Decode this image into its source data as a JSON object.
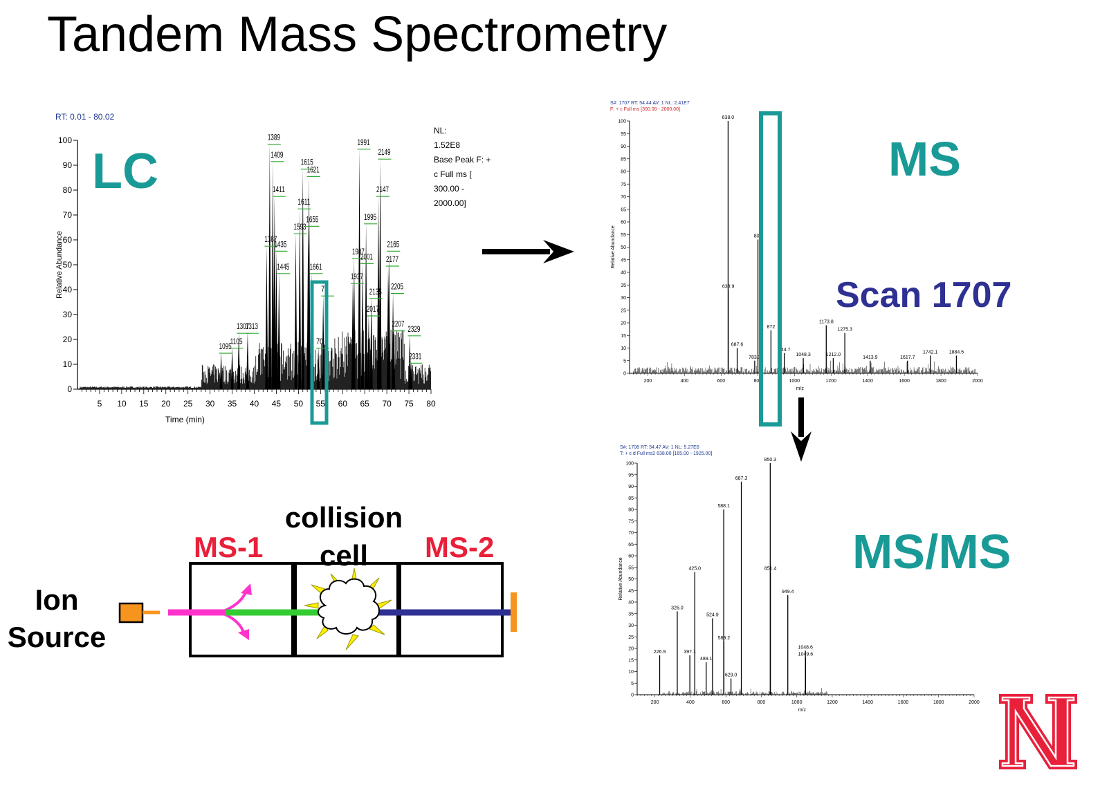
{
  "title": "Tandem Mass Spectrometry",
  "labels": {
    "lc": "LC",
    "ms": "MS",
    "scan": "Scan 1707",
    "msms": "MS/MS",
    "ms1": "MS-1",
    "ms2": "MS-2",
    "collision_line1": "collision",
    "collision_line2": "cell",
    "ion_line1": "Ion",
    "ion_line2": "Source"
  },
  "colors": {
    "teal": "#1a9a96",
    "navy": "#2e3192",
    "red": "#e8203a",
    "magenta": "#ff33cc",
    "green": "#33cc33",
    "orange": "#f7941d",
    "peak_label": "#33aa33"
  },
  "chart_data": [
    {
      "type": "line",
      "name": "lc-chromatogram",
      "header": "RT: 0.01 - 80.02",
      "xlabel": "Time (min)",
      "ylabel": "Relative Abundance",
      "xlim": [
        0,
        80
      ],
      "ylim": [
        0,
        100
      ],
      "xticks": [
        5,
        10,
        15,
        20,
        25,
        30,
        35,
        40,
        45,
        50,
        55,
        60,
        65,
        70,
        75,
        80
      ],
      "yticks": [
        0,
        10,
        20,
        30,
        40,
        50,
        60,
        70,
        80,
        90,
        100
      ],
      "info": [
        "NL:",
        "1.52E8",
        "Base Peak F: +",
        "c Full ms [",
        "300.00 -",
        "2000.00]"
      ],
      "peaks": [
        {
          "x": 43.5,
          "y": 99,
          "label": "1389"
        },
        {
          "x": 44.2,
          "y": 92,
          "label": "1409"
        },
        {
          "x": 44.6,
          "y": 78,
          "label": "1411"
        },
        {
          "x": 42.8,
          "y": 58,
          "label": "1387"
        },
        {
          "x": 45.0,
          "y": 56,
          "label": "1435"
        },
        {
          "x": 45.6,
          "y": 47,
          "label": "1445"
        },
        {
          "x": 51.0,
          "y": 89,
          "label": "1615"
        },
        {
          "x": 52.4,
          "y": 86,
          "label": "1621"
        },
        {
          "x": 50.3,
          "y": 73,
          "label": "1611"
        },
        {
          "x": 49.4,
          "y": 63,
          "label": "1593"
        },
        {
          "x": 52.2,
          "y": 66,
          "label": "1655"
        },
        {
          "x": 53.0,
          "y": 47,
          "label": "1661"
        },
        {
          "x": 55.6,
          "y": 38,
          "label": "79"
        },
        {
          "x": 54.5,
          "y": 17,
          "label": "70"
        },
        {
          "x": 63.8,
          "y": 97,
          "label": "1991"
        },
        {
          "x": 68.5,
          "y": 93,
          "label": "2149"
        },
        {
          "x": 68.1,
          "y": 78,
          "label": "2147"
        },
        {
          "x": 65.3,
          "y": 67,
          "label": "1995"
        },
        {
          "x": 62.6,
          "y": 53,
          "label": "1987"
        },
        {
          "x": 64.5,
          "y": 51,
          "label": "2001"
        },
        {
          "x": 62.3,
          "y": 43,
          "label": "1937"
        },
        {
          "x": 70.5,
          "y": 56,
          "label": "2165"
        },
        {
          "x": 70.3,
          "y": 50,
          "label": "2177"
        },
        {
          "x": 71.4,
          "y": 39,
          "label": "2205"
        },
        {
          "x": 66.5,
          "y": 37,
          "label": "2135"
        },
        {
          "x": 65.9,
          "y": 30,
          "label": "2017"
        },
        {
          "x": 71.6,
          "y": 24,
          "label": "2207"
        },
        {
          "x": 75.2,
          "y": 22,
          "label": "2329"
        },
        {
          "x": 75.5,
          "y": 11,
          "label": "2331"
        },
        {
          "x": 38.5,
          "y": 23,
          "label": "1313"
        },
        {
          "x": 36.5,
          "y": 23,
          "label": "1307"
        },
        {
          "x": 35.0,
          "y": 17,
          "label": "1105"
        },
        {
          "x": 32.5,
          "y": 15,
          "label": "1095"
        }
      ]
    },
    {
      "type": "bar",
      "name": "ms-spectrum",
      "header1": "S#: 1707  RT: 54.44  AV: 1  NL: 2.41E7",
      "header2": "F: + c Full ms [300.00 - 2000.00]",
      "xlabel": "m/z",
      "ylabel": "Relative Abundance",
      "xlim": [
        100,
        2000
      ],
      "ylim": [
        0,
        100
      ],
      "xticks": [
        200,
        400,
        600,
        800,
        1000,
        1200,
        1400,
        1600,
        1800,
        2000
      ],
      "yticks": [
        0,
        5,
        10,
        15,
        20,
        25,
        30,
        35,
        40,
        45,
        50,
        55,
        60,
        65,
        70,
        75,
        80,
        85,
        90,
        95,
        100
      ],
      "peaks": [
        {
          "x": 638.0,
          "y": 100,
          "label": "638.0"
        },
        {
          "x": 638.9,
          "y": 33,
          "label": "638.9"
        },
        {
          "x": 687.6,
          "y": 10,
          "label": "687.6"
        },
        {
          "x": 783.3,
          "y": 5,
          "label": "783.3"
        },
        {
          "x": 801,
          "y": 53,
          "label": "801"
        },
        {
          "x": 872,
          "y": 17,
          "label": "872"
        },
        {
          "x": 944.7,
          "y": 8,
          "label": "944.7"
        },
        {
          "x": 1048.3,
          "y": 6,
          "label": "1048.3"
        },
        {
          "x": 1173.8,
          "y": 19,
          "label": "1173.8"
        },
        {
          "x": 1275.3,
          "y": 16,
          "label": "1275.3"
        },
        {
          "x": 1212.0,
          "y": 6,
          "label": "1212.0"
        },
        {
          "x": 1413.9,
          "y": 5,
          "label": "1413.9"
        },
        {
          "x": 1617.7,
          "y": 5,
          "label": "1617.7"
        },
        {
          "x": 1742.1,
          "y": 7,
          "label": "1742.1"
        },
        {
          "x": 1884.5,
          "y": 7,
          "label": "1884.5"
        }
      ]
    },
    {
      "type": "bar",
      "name": "msms-spectrum",
      "header1": "S#: 1708  RT: 54.47  AV: 1  NL: 5.27E6",
      "header2": "T: + c d Full ms2 638.00 [165.00 - 1925.00]",
      "xlabel": "m/z",
      "ylabel": "Relative Abundance",
      "xlim": [
        100,
        2000
      ],
      "ylim": [
        0,
        100
      ],
      "xticks": [
        200,
        400,
        600,
        800,
        1000,
        1200,
        1400,
        1600,
        1800,
        2000
      ],
      "yticks": [
        0,
        5,
        10,
        15,
        20,
        25,
        30,
        35,
        40,
        45,
        50,
        55,
        60,
        65,
        70,
        75,
        80,
        85,
        90,
        95,
        100
      ],
      "peaks": [
        {
          "x": 850.3,
          "y": 100,
          "label": "850.3"
        },
        {
          "x": 687.3,
          "y": 92,
          "label": "687.3"
        },
        {
          "x": 588.1,
          "y": 80,
          "label": "588.1"
        },
        {
          "x": 851.4,
          "y": 53,
          "label": "851.4"
        },
        {
          "x": 425.0,
          "y": 53,
          "label": "425.0"
        },
        {
          "x": 949.4,
          "y": 43,
          "label": "949.4"
        },
        {
          "x": 326.0,
          "y": 36,
          "label": "326.0"
        },
        {
          "x": 524.9,
          "y": 33,
          "label": "524.9"
        },
        {
          "x": 589.2,
          "y": 23,
          "label": "589.2"
        },
        {
          "x": 226.9,
          "y": 17,
          "label": "226.9"
        },
        {
          "x": 397.1,
          "y": 17,
          "label": "397.1"
        },
        {
          "x": 489.1,
          "y": 14,
          "label": "489.1"
        },
        {
          "x": 629.0,
          "y": 7,
          "label": "629.0"
        },
        {
          "x": 1048.6,
          "y": 19,
          "label": "1048.6"
        },
        {
          "x": 1049.6,
          "y": 16,
          "label": "1049.6"
        }
      ]
    }
  ]
}
